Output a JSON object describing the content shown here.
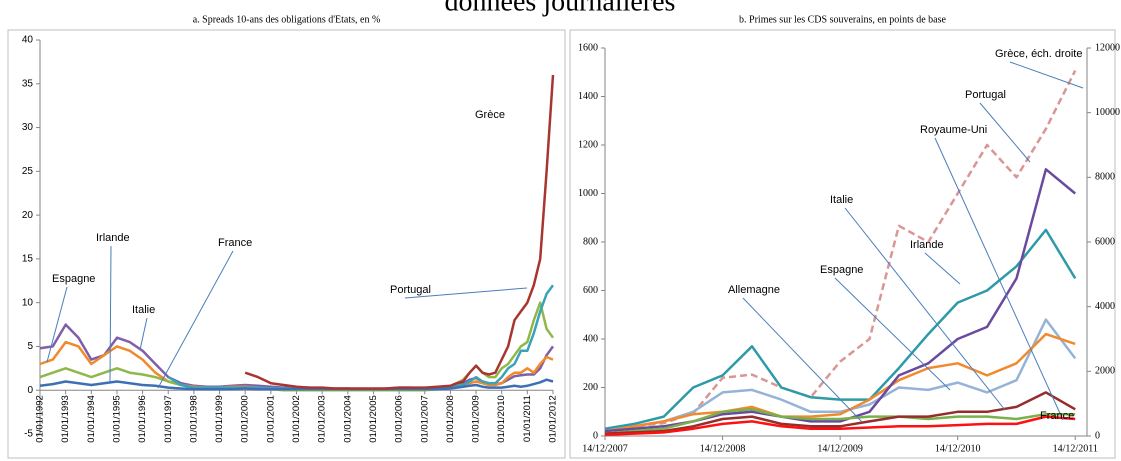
{
  "title": "données journalières",
  "chart_data": [
    {
      "type": "line",
      "title": "a. Spreads 10-ans des obligations d'Etats, en %",
      "x": [
        1992,
        1992.5,
        1993,
        1993.5,
        1994,
        1994.5,
        1995,
        1995.5,
        1996,
        1996.5,
        1997,
        1997.5,
        1998,
        1998.5,
        1999,
        1999.5,
        2000,
        2000.5,
        2001,
        2001.5,
        2002,
        2002.5,
        2003,
        2003.5,
        2004,
        2004.5,
        2005,
        2005.5,
        2006,
        2006.5,
        2007,
        2007.5,
        2008,
        2008.25,
        2008.5,
        2008.75,
        2009,
        2009.25,
        2009.5,
        2009.75,
        2010,
        2010.25,
        2010.5,
        2010.75,
        2011,
        2011.25,
        2011.5,
        2011.75,
        2012
      ],
      "xlim": [
        1992,
        2012
      ],
      "xticks": [
        {
          "value": 1992,
          "label": "01/01/1992"
        },
        {
          "value": 1993,
          "label": "01/01/1993"
        },
        {
          "value": 1994,
          "label": "01/01/1994"
        },
        {
          "value": 1995,
          "label": "01/01/1995"
        },
        {
          "value": 1996,
          "label": "01/01/1996"
        },
        {
          "value": 1997,
          "label": "01/01/1997"
        },
        {
          "value": 1998,
          "label": "01/01/1998"
        },
        {
          "value": 1999,
          "label": "01/01/1999"
        },
        {
          "value": 2000,
          "label": "01/01/2000"
        },
        {
          "value": 2001,
          "label": "01/01/2001"
        },
        {
          "value": 2002,
          "label": "01/01/2002"
        },
        {
          "value": 2003,
          "label": "01/01/2003"
        },
        {
          "value": 2004,
          "label": "01/01/2004"
        },
        {
          "value": 2005,
          "label": "01/01/2005"
        },
        {
          "value": 2006,
          "label": "01/01/2006"
        },
        {
          "value": 2007,
          "label": "01/01/2007"
        },
        {
          "value": 2008,
          "label": "01/01/2008"
        },
        {
          "value": 2009,
          "label": "01/01/2009"
        },
        {
          "value": 2010,
          "label": "01/01/2010"
        },
        {
          "value": 2011,
          "label": "01/01/2011"
        },
        {
          "value": 2012,
          "label": "01/01/2012"
        }
      ],
      "ylim": [
        -5,
        40
      ],
      "yticks": [
        -5,
        0,
        5,
        10,
        15,
        20,
        25,
        30,
        35,
        40
      ],
      "series": [
        {
          "name": "Italie",
          "color": "#7f5fa8",
          "values": [
            4.8,
            5,
            7.5,
            6,
            3.5,
            4,
            6,
            5.5,
            4.5,
            3,
            1.5,
            0.8,
            0.5,
            0.4,
            0.4,
            0.5,
            0.6,
            0.5,
            0.4,
            0.3,
            0.3,
            0.3,
            0.2,
            0.2,
            0.2,
            0.1,
            0.1,
            0.2,
            0.3,
            0.3,
            0.2,
            0.3,
            0.4,
            0.6,
            0.8,
            1.2,
            1.4,
            1,
            0.8,
            0.7,
            0.8,
            1.2,
            1.6,
            1.7,
            1.8,
            1.8,
            2.5,
            4,
            5
          ]
        },
        {
          "name": "Espagne",
          "color": "#f08a2c",
          "values": [
            3,
            3.5,
            5.5,
            5,
            3,
            4,
            5,
            4.5,
            3.5,
            2,
            1,
            0.6,
            0.4,
            0.3,
            0.3,
            0.4,
            0.4,
            0.3,
            0.2,
            0.1,
            0.1,
            0.1,
            0.1,
            0.1,
            0.1,
            0,
            0,
            0,
            0,
            0.1,
            0.1,
            0.1,
            0.3,
            0.5,
            0.6,
            0.8,
            1,
            0.8,
            0.6,
            0.6,
            0.8,
            1.5,
            2,
            2,
            2.5,
            2,
            3,
            3.8,
            3.5
          ]
        },
        {
          "name": "Irlande",
          "color": "#8fb84a",
          "values": [
            1.5,
            2,
            2.5,
            2,
            1.5,
            2,
            2.5,
            2,
            1.8,
            1.5,
            1,
            0.6,
            0.3,
            0.2,
            0.2,
            0.2,
            0.3,
            0.2,
            0.1,
            0,
            0,
            0,
            0,
            0,
            0,
            0,
            0,
            0,
            0,
            0,
            0,
            0.1,
            0.3,
            0.8,
            1.2,
            2,
            2.8,
            2,
            1.5,
            1.5,
            2.5,
            3,
            4,
            5,
            5.5,
            8,
            10,
            7,
            6
          ]
        },
        {
          "name": "Portugal",
          "color": "#3aa3b8",
          "values": [
            null,
            null,
            null,
            null,
            null,
            null,
            null,
            null,
            null,
            null,
            1.5,
            0.6,
            0.3,
            0.3,
            0.3,
            0.3,
            0.3,
            0.3,
            0.2,
            0.2,
            0.1,
            0.1,
            0.1,
            0.1,
            0.1,
            0.1,
            0.1,
            0.1,
            0.1,
            0.1,
            0.1,
            0.2,
            0.3,
            0.5,
            0.6,
            1,
            1.5,
            1,
            0.8,
            0.8,
            1.5,
            2.5,
            3,
            4.5,
            4.5,
            6.5,
            9,
            11,
            12
          ]
        },
        {
          "name": "France",
          "color": "#3d6fb6",
          "values": [
            0.5,
            0.7,
            1,
            0.8,
            0.6,
            0.8,
            1,
            0.8,
            0.6,
            0.5,
            0.3,
            0.2,
            0.1,
            0.1,
            0.1,
            0.1,
            0.2,
            0.1,
            0.1,
            0.1,
            0.1,
            0.1,
            0.1,
            0.1,
            0.1,
            0.1,
            0.1,
            0.1,
            0.1,
            0.1,
            0.1,
            0.1,
            0.2,
            0.3,
            0.4,
            0.5,
            0.6,
            0.4,
            0.3,
            0.3,
            0.3,
            0.4,
            0.5,
            0.4,
            0.5,
            0.7,
            0.9,
            1.2,
            1
          ]
        },
        {
          "name": "Grèce",
          "color": "#a8352f",
          "values": [
            null,
            null,
            null,
            null,
            null,
            null,
            null,
            null,
            null,
            null,
            null,
            null,
            null,
            null,
            null,
            null,
            2,
            1.5,
            0.8,
            0.6,
            0.4,
            0.3,
            0.3,
            0.2,
            0.2,
            0.2,
            0.2,
            0.2,
            0.3,
            0.3,
            0.3,
            0.4,
            0.5,
            0.8,
            1,
            2,
            2.8,
            2,
            1.8,
            2,
            3.5,
            5,
            8,
            9,
            10,
            12,
            15,
            25,
            36
          ]
        }
      ],
      "annotations": [
        "Grèce",
        "Portugal",
        "Irlande",
        "Espagne",
        "Italie",
        "France"
      ]
    },
    {
      "type": "line",
      "title": "b. Primes sur les CDS souverains, en points de base",
      "x": [
        2007.95,
        2008.2,
        2008.45,
        2008.7,
        2008.95,
        2009.2,
        2009.45,
        2009.7,
        2009.95,
        2010.2,
        2010.45,
        2010.7,
        2010.95,
        2011.2,
        2011.45,
        2011.7,
        2011.95
      ],
      "xlim": [
        2007.95,
        2012.05
      ],
      "xticks": [
        {
          "value": 2007.95,
          "label": "14/12/2007"
        },
        {
          "value": 2008.95,
          "label": "14/12/2008"
        },
        {
          "value": 2009.95,
          "label": "14/12/2009"
        },
        {
          "value": 2010.95,
          "label": "14/12/2010"
        },
        {
          "value": 2011.95,
          "label": "14/12/2011"
        }
      ],
      "ylim": [
        0,
        1600
      ],
      "yticks": [
        0,
        200,
        400,
        600,
        800,
        1000,
        1200,
        1400,
        1600
      ],
      "y2lim": [
        0,
        12000
      ],
      "y2ticks": [
        0,
        2000,
        4000,
        6000,
        8000,
        10000,
        12000
      ],
      "series": [
        {
          "name": "Grèce",
          "color": "#d99694",
          "axis": "y2",
          "dashed": true,
          "values": [
            150,
            300,
            400,
            700,
            1800,
            1900,
            1500,
            1200,
            2300,
            3000,
            6500,
            6000,
            7500,
            9000,
            8000,
            9500,
            11300
          ]
        },
        {
          "name": "Irlande",
          "color": "#2e9aa8",
          "values": [
            30,
            50,
            80,
            200,
            250,
            370,
            200,
            160,
            150,
            150,
            280,
            420,
            550,
            600,
            700,
            850,
            650
          ]
        },
        {
          "name": "Italie",
          "color": "#95b3d7",
          "values": [
            20,
            40,
            60,
            100,
            180,
            190,
            150,
            100,
            100,
            130,
            200,
            190,
            220,
            180,
            230,
            480,
            320
          ]
        },
        {
          "name": "Espagne",
          "color": "#f08a2c",
          "values": [
            20,
            40,
            60,
            90,
            100,
            120,
            80,
            80,
            90,
            150,
            230,
            280,
            300,
            250,
            300,
            420,
            380
          ]
        },
        {
          "name": "Portugal",
          "color": "#6a4a9e",
          "values": [
            20,
            30,
            40,
            60,
            90,
            100,
            80,
            60,
            60,
            100,
            250,
            300,
            400,
            450,
            650,
            1100,
            1000
          ]
        },
        {
          "name": "Royaume-Uni",
          "color": "#7ab04a",
          "values": [
            10,
            20,
            30,
            60,
            100,
            110,
            80,
            70,
            70,
            80,
            80,
            70,
            80,
            80,
            70,
            90,
            90
          ]
        },
        {
          "name": "France",
          "color": "#962c2c",
          "values": [
            10,
            15,
            20,
            40,
            70,
            80,
            50,
            40,
            40,
            60,
            80,
            80,
            100,
            100,
            120,
            180,
            110
          ]
        },
        {
          "name": "Allemagne",
          "color": "#ff1010",
          "values": [
            5,
            10,
            15,
            30,
            50,
            60,
            40,
            30,
            30,
            35,
            40,
            40,
            45,
            50,
            50,
            80,
            70
          ]
        }
      ],
      "annotations": [
        "Grèce, éch. droite",
        "Portugal",
        "Royaume-Uni",
        "Italie",
        "Irlande",
        "Espagne",
        "Allemagne",
        "France"
      ]
    }
  ]
}
